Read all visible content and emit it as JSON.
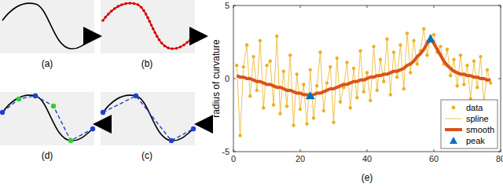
{
  "panels": [
    {
      "label": "(a)"
    },
    {
      "label": "(b)"
    },
    {
      "label": "(c)"
    },
    {
      "label": "(d)"
    }
  ],
  "chart_data": {
    "type": "line",
    "x_label": "(e)",
    "y_label": "radius of curvature",
    "xlim": [
      0,
      80
    ],
    "xticks": [
      0,
      20,
      40,
      60,
      80
    ],
    "ylim": [
      -5,
      5
    ],
    "yticks": [
      -5,
      0,
      5
    ],
    "grid": false,
    "legend": "lower right",
    "x": [
      1,
      2,
      3,
      4,
      5,
      6,
      7,
      8,
      9,
      10,
      11,
      12,
      13,
      14,
      15,
      16,
      17,
      18,
      19,
      20,
      21,
      22,
      23,
      24,
      25,
      26,
      27,
      28,
      29,
      30,
      31,
      32,
      33,
      34,
      35,
      36,
      37,
      38,
      39,
      40,
      41,
      42,
      43,
      44,
      45,
      46,
      47,
      48,
      49,
      50,
      51,
      52,
      53,
      54,
      55,
      56,
      57,
      58,
      59,
      60,
      61,
      62,
      63,
      64,
      65,
      66,
      67,
      68,
      69,
      70,
      71,
      72,
      73,
      74,
      75,
      76,
      77
    ],
    "series": [
      {
        "name": "data",
        "type": "scatter",
        "marker": "circle",
        "color": "#edb120",
        "values": [
          0.9,
          -3.9,
          0.8,
          2.3,
          -1.2,
          1.5,
          -0.8,
          2.6,
          -2.0,
          0.9,
          1.2,
          -1.8,
          2.9,
          -2.4,
          0.5,
          -1.9,
          1.6,
          -3.2,
          0.3,
          -2.1,
          -0.4,
          -3.1,
          0.6,
          -2.7,
          -0.5,
          1.8,
          -2.2,
          -0.3,
          0.8,
          -3.0,
          1.4,
          -1.6,
          -0.6,
          1.1,
          -2.0,
          0.7,
          -1.3,
          1.9,
          -0.9,
          0.4,
          -1.5,
          2.2,
          -0.8,
          1.3,
          -0.2,
          2.7,
          -1.1,
          1.8,
          0.1,
          2.3,
          -0.7,
          3.1,
          0.4,
          2.6,
          1.0,
          1.9,
          3.4,
          1.6,
          2.9,
          3.0,
          1.8,
          2.2,
          1.0,
          2.0,
          0.2,
          1.3,
          -0.5,
          1.6,
          -0.4,
          0.9,
          -1.4,
          1.2,
          -0.6,
          1.5,
          -1.7,
          0.6,
          -0.3
        ]
      },
      {
        "name": "spline",
        "type": "line",
        "line_style": "thin",
        "color": "#edb120",
        "values": [
          0.9,
          -3.9,
          0.8,
          2.3,
          -1.2,
          1.5,
          -0.8,
          2.6,
          -2.0,
          0.9,
          1.2,
          -1.8,
          2.9,
          -2.4,
          0.5,
          -1.9,
          1.6,
          -3.2,
          0.3,
          -2.1,
          -0.4,
          -3.1,
          0.6,
          -2.7,
          -0.5,
          1.8,
          -2.2,
          -0.3,
          0.8,
          -3.0,
          1.4,
          -1.6,
          -0.6,
          1.1,
          -2.0,
          0.7,
          -1.3,
          1.9,
          -0.9,
          0.4,
          -1.5,
          2.2,
          -0.8,
          1.3,
          -0.2,
          2.7,
          -1.1,
          1.8,
          0.1,
          2.3,
          -0.7,
          3.1,
          0.4,
          2.6,
          1.0,
          1.9,
          3.4,
          1.6,
          2.9,
          3.0,
          1.8,
          2.2,
          1.0,
          2.0,
          0.2,
          1.3,
          -0.5,
          1.6,
          -0.4,
          0.9,
          -1.4,
          1.2,
          -0.6,
          1.5,
          -1.7,
          0.6,
          -0.3
        ]
      },
      {
        "name": "smooth",
        "type": "line",
        "line_style": "thick",
        "color": "#d95319",
        "values": [
          0.2,
          0.1,
          0.1,
          0.0,
          0.0,
          -0.1,
          -0.2,
          -0.2,
          -0.3,
          -0.4,
          -0.4,
          -0.5,
          -0.6,
          -0.6,
          -0.7,
          -0.8,
          -0.8,
          -0.9,
          -1.0,
          -1.0,
          -1.1,
          -1.1,
          -1.2,
          -1.1,
          -1.0,
          -1.0,
          -0.9,
          -0.8,
          -0.7,
          -0.7,
          -0.6,
          -0.5,
          -0.4,
          -0.4,
          -0.3,
          -0.2,
          -0.2,
          -0.1,
          -0.1,
          0.0,
          0.1,
          0.1,
          0.2,
          0.2,
          0.3,
          0.3,
          0.4,
          0.5,
          0.5,
          0.6,
          0.7,
          0.9,
          1.0,
          1.2,
          1.5,
          1.7,
          2.0,
          2.4,
          2.7,
          2.4,
          2.0,
          1.6,
          1.2,
          0.9,
          0.7,
          0.5,
          0.4,
          0.3,
          0.3,
          0.2,
          0.2,
          0.1,
          0.1,
          0.0,
          0.0,
          -0.1,
          -0.1
        ]
      },
      {
        "name": "peak",
        "type": "scatter",
        "marker": "triangle",
        "color": "#0072bd",
        "x": [
          23,
          59
        ],
        "values": [
          -1.2,
          2.7
        ]
      }
    ]
  }
}
